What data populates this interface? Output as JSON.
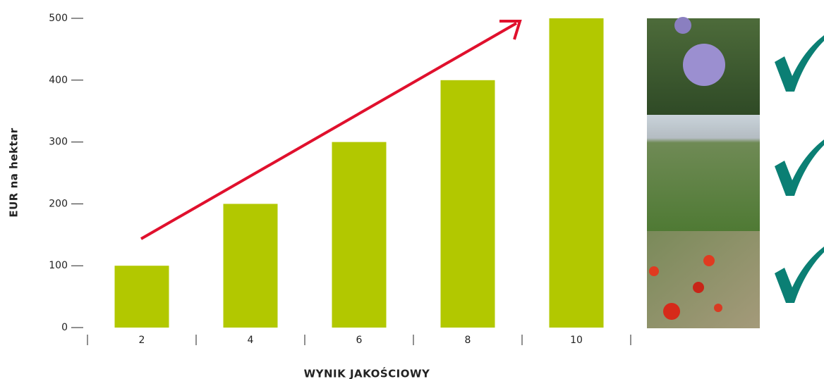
{
  "chart_data": {
    "type": "bar",
    "x_label": "WYNIK JAKOŚCIOWY",
    "y_label": "EUR na hektar",
    "categories": [
      "2",
      "4",
      "6",
      "8",
      "10"
    ],
    "values": [
      100,
      200,
      300,
      400,
      500
    ],
    "color": "#b2c800",
    "ylim": [
      0,
      500
    ],
    "yticks": [
      0,
      100,
      200,
      300,
      400,
      500
    ]
  }
}
